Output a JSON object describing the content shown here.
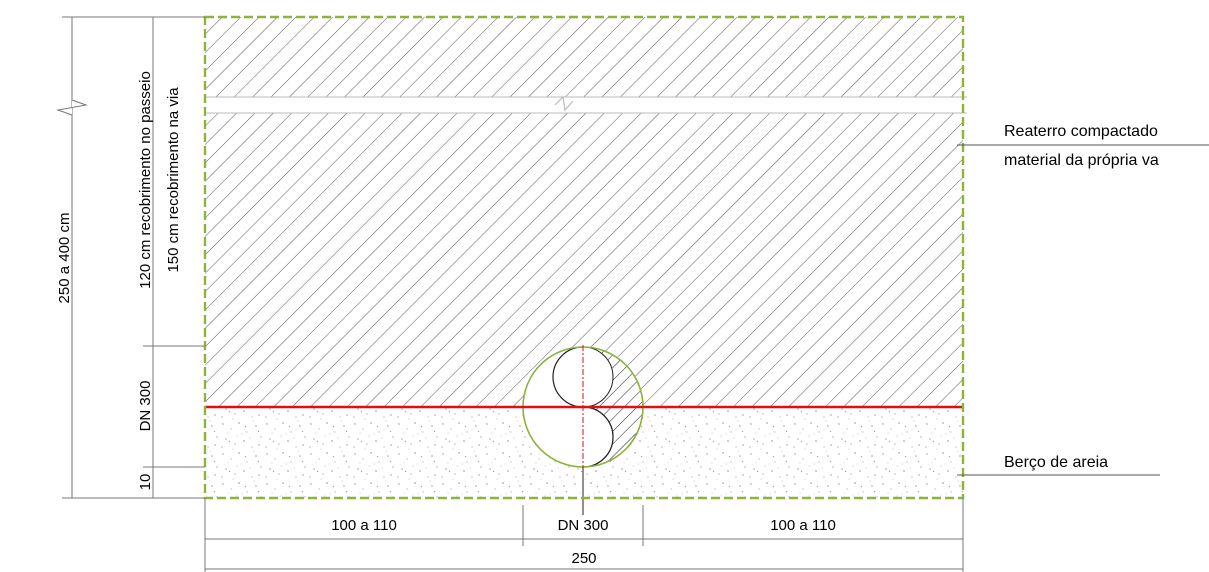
{
  "colors": {
    "trench_outline": "#8cb33a",
    "sand_line": "#e01010",
    "pipe_outline": "#8cb33a",
    "dimension_line": "#777777",
    "hatch": "#444444",
    "pipe_axis": "#e01010"
  },
  "vertical_dims": {
    "total": "250 a 400 cm",
    "cover_sidewalk": "120 cm recobrimento no passeio",
    "cover_road": "150 cm recobrimento na via",
    "pipe_dn": "DN 300",
    "bedding": "10"
  },
  "horizontal_dims": {
    "left": "100 a 110",
    "pipe": "DN 300",
    "right": "100 a 110",
    "total": "250"
  },
  "callouts": {
    "backfill_line1": "Reaterro compactado",
    "backfill_line2": "material da própria va",
    "bedding": "Berço de areia"
  }
}
